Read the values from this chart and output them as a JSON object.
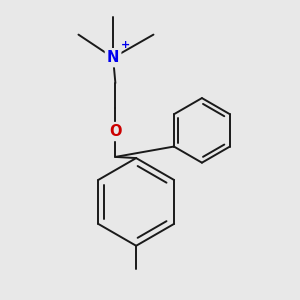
{
  "bg_color": "#e8e8e8",
  "bond_color": "#1a1a1a",
  "N_color": "#0000ee",
  "O_color": "#cc0000",
  "font_size_atom": 10.5,
  "lw": 1.4
}
